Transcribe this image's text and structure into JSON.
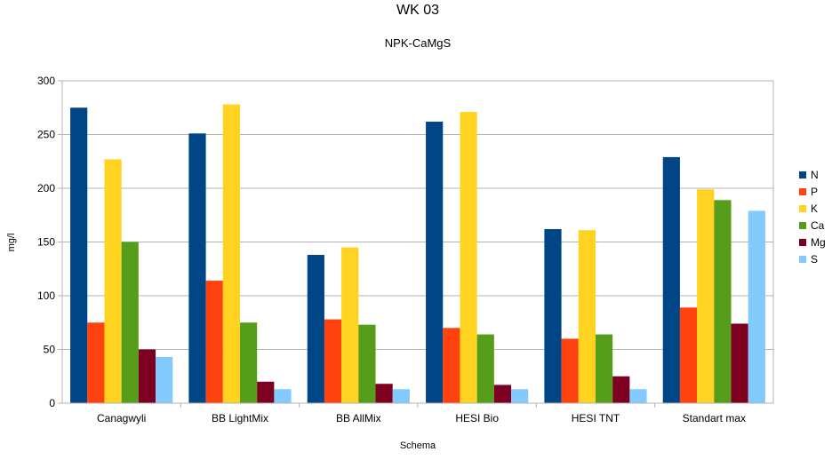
{
  "chart_data": {
    "type": "bar",
    "title": "WK 03",
    "subtitle": "NPK-CaMgS",
    "xlabel": "Schema",
    "ylabel": "mg/l",
    "ylim": [
      0,
      300
    ],
    "yticks": [
      0,
      50,
      100,
      150,
      200,
      250,
      300
    ],
    "grid": true,
    "legend_position": "right",
    "categories": [
      "Canagwyli",
      "BB LightMix",
      "BB AllMix",
      "HESI Bio",
      "HESI TNT",
      "Standart max"
    ],
    "series": [
      {
        "name": "N",
        "color": "#004586",
        "values": [
          275,
          251,
          138,
          262,
          162,
          229
        ]
      },
      {
        "name": "P",
        "color": "#ff420e",
        "values": [
          75,
          114,
          78,
          70,
          60,
          89
        ]
      },
      {
        "name": "K",
        "color": "#ffd320",
        "values": [
          227,
          278,
          145,
          271,
          161,
          199
        ]
      },
      {
        "name": "Ca",
        "color": "#579d1c",
        "values": [
          150,
          75,
          73,
          64,
          64,
          189
        ]
      },
      {
        "name": "Mg",
        "color": "#7e0021",
        "values": [
          50,
          20,
          18,
          17,
          25,
          74
        ]
      },
      {
        "name": "S",
        "color": "#83caff",
        "values": [
          43,
          13,
          13,
          13,
          13,
          179
        ]
      }
    ]
  }
}
